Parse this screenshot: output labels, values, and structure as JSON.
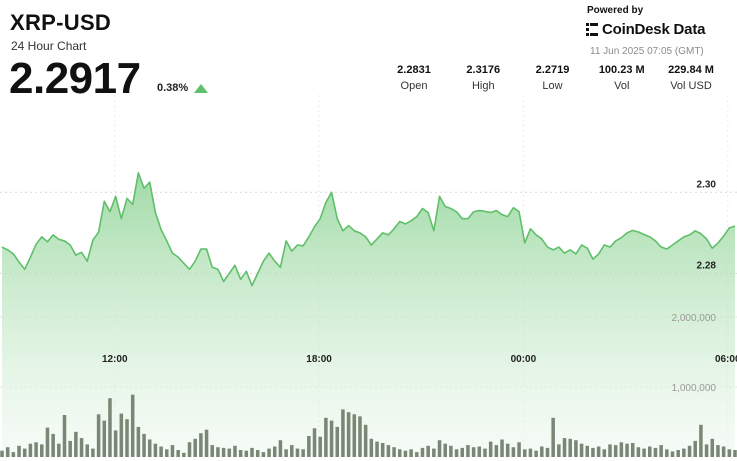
{
  "header": {
    "title": "XRP-USD",
    "subtitle": "24 Hour Chart",
    "price": "2.2917",
    "change": "0.38%",
    "change_direction": "up"
  },
  "branding": {
    "powered_by": "Powered by",
    "name": "CoinDesk Data",
    "timestamp": "11 Jun 2025 07:05 (GMT)"
  },
  "stats": [
    {
      "value": "2.2831",
      "label": "Open"
    },
    {
      "value": "2.3176",
      "label": "High"
    },
    {
      "value": "2.2719",
      "label": "Low"
    },
    {
      "value": "100.23 M",
      "label": "Vol"
    },
    {
      "value": "229.84 M",
      "label": "Vol USD"
    }
  ],
  "colors": {
    "price_line": "#5fbf6a",
    "price_fill_top": "#8fd496",
    "volume_bar": "#6f7d6a",
    "accent_up": "#5fbf6a"
  },
  "chart_data": {
    "type": "area",
    "price_axis": {
      "ticks": [
        2.28,
        2.3
      ],
      "tick_labels": [
        "2.28",
        "2.30"
      ],
      "ylim": [
        2.2685,
        2.324
      ]
    },
    "volume_axis": {
      "ticks": [
        1000000,
        2000000
      ],
      "tick_labels": [
        "1,000,000",
        "2,000,000"
      ],
      "ylim": [
        0,
        3100000
      ]
    },
    "x_ticks": [
      {
        "label": "12:00",
        "index": 16
      },
      {
        "label": "18:00",
        "index": 45
      },
      {
        "label": "00:00",
        "index": 74
      },
      {
        "label": "06:00",
        "index": 103
      }
    ],
    "series": [
      {
        "values": [
          2.2865,
          2.2858,
          2.2848,
          2.2828,
          2.281,
          2.284,
          2.2872,
          2.289,
          2.2878,
          2.2895,
          2.2884,
          2.288,
          2.287,
          2.2845,
          2.2852,
          2.283,
          2.2882,
          2.2902,
          2.2978,
          2.2952,
          2.299,
          2.2935,
          2.2985,
          2.297,
          2.3048,
          2.301,
          2.3025,
          2.295,
          2.2908,
          2.288,
          2.285,
          2.284,
          2.2825,
          2.281,
          2.283,
          2.286,
          2.286,
          2.2815,
          2.281,
          2.278,
          2.28,
          2.282,
          2.2785,
          2.2805,
          2.277,
          2.28,
          2.283,
          2.285,
          2.283,
          2.2815,
          2.288,
          2.2855,
          2.287,
          2.2868,
          2.289,
          2.2915,
          2.2935,
          2.2975,
          2.3,
          2.2935,
          2.2905,
          2.2918,
          2.2905,
          2.29,
          2.289,
          2.287,
          2.2885,
          2.29,
          2.2895,
          2.291,
          2.2928,
          2.2922,
          2.293,
          2.294,
          2.296,
          2.295,
          2.2905,
          2.299,
          2.2965,
          2.296,
          2.2952,
          2.2935,
          2.2935,
          2.2952,
          2.2955,
          2.2953,
          2.295,
          2.2955,
          2.2945,
          2.294,
          2.2962,
          2.2952,
          2.2875,
          2.291,
          2.2895,
          2.2885,
          2.2865,
          2.2858,
          2.2865,
          2.285,
          2.2858,
          2.2848,
          2.287,
          2.2862,
          2.2835,
          2.2848,
          2.287,
          2.2865,
          2.288,
          2.2888,
          2.29,
          2.2906,
          2.2902,
          2.2896,
          2.289,
          2.288,
          2.2865,
          2.286,
          2.287,
          2.288,
          2.289,
          2.2895,
          2.2905,
          2.2898,
          2.2885,
          2.2862,
          2.2875,
          2.2892,
          2.2912,
          2.2917
        ]
      },
      {
        "values": [
          90000,
          140000,
          70000,
          160000,
          120000,
          190000,
          210000,
          180000,
          420000,
          330000,
          190000,
          600000,
          230000,
          360000,
          270000,
          180000,
          120000,
          610000,
          520000,
          840000,
          380000,
          620000,
          540000,
          890000,
          430000,
          330000,
          250000,
          190000,
          150000,
          110000,
          170000,
          100000,
          60000,
          210000,
          260000,
          340000,
          390000,
          170000,
          140000,
          130000,
          120000,
          160000,
          100000,
          90000,
          130000,
          100000,
          70000,
          120000,
          150000,
          240000,
          110000,
          170000,
          120000,
          110000,
          300000,
          410000,
          290000,
          560000,
          520000,
          430000,
          680000,
          640000,
          610000,
          580000,
          460000,
          260000,
          220000,
          200000,
          170000,
          140000,
          110000,
          90000,
          110000,
          70000,
          130000,
          160000,
          120000,
          240000,
          190000,
          160000,
          110000,
          130000,
          170000,
          140000,
          150000,
          120000,
          220000,
          170000,
          250000,
          190000,
          140000,
          210000,
          110000,
          120000,
          90000,
          150000,
          130000,
          560000,
          180000,
          270000,
          260000,
          240000,
          190000,
          160000,
          130000,
          150000,
          110000,
          180000,
          170000,
          210000,
          190000,
          200000,
          140000,
          120000,
          150000,
          130000,
          170000,
          110000,
          80000,
          100000,
          120000,
          160000,
          230000,
          460000,
          180000,
          260000,
          170000,
          150000,
          110000,
          100000
        ]
      }
    ]
  }
}
